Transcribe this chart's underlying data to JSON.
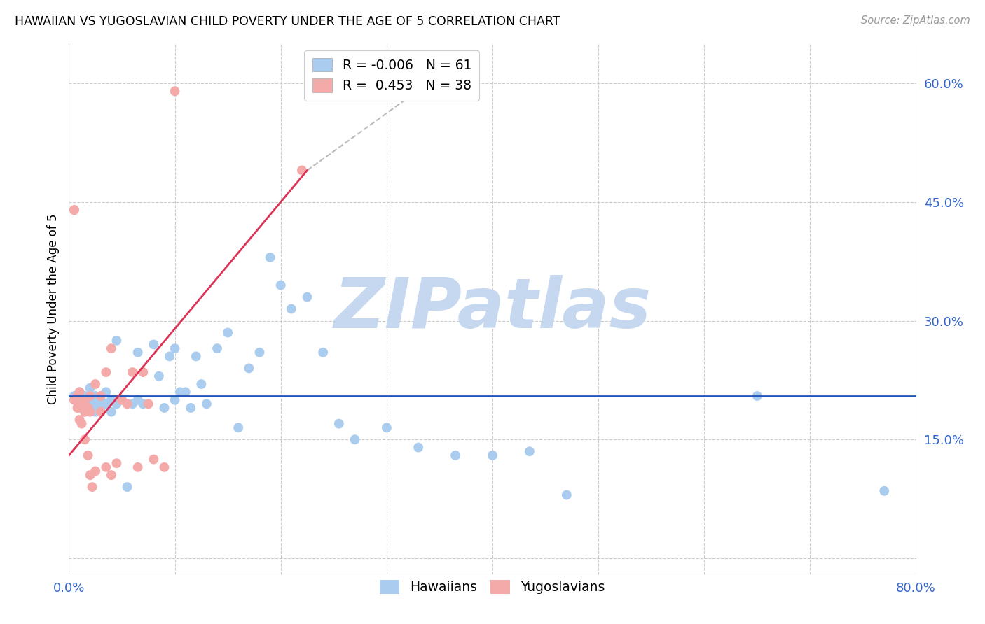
{
  "title": "HAWAIIAN VS YUGOSLAVIAN CHILD POVERTY UNDER THE AGE OF 5 CORRELATION CHART",
  "source": "Source: ZipAtlas.com",
  "ylabel": "Child Poverty Under the Age of 5",
  "xlim": [
    0.0,
    0.8
  ],
  "ylim": [
    -0.02,
    0.65
  ],
  "grid_color": "#cccccc",
  "background_color": "#ffffff",
  "hawaiian_color": "#aaccee",
  "yugoslavian_color": "#f5aaaa",
  "hawaiian_line_color": "#2255bb",
  "yugoslavian_line_color": "#dd3355",
  "legend_R_hawaiian": "-0.006",
  "legend_N_hawaiian": "61",
  "legend_R_yugoslavian": "0.453",
  "legend_N_yugoslavian": "38",
  "watermark": "ZIPatlas",
  "watermark_color": "#c5d8f0",
  "hawaiian_line_x": [
    0.0,
    0.8
  ],
  "hawaiian_line_y": [
    0.205,
    0.205
  ],
  "yugoslavian_line_x": [
    0.0,
    0.225
  ],
  "yugoslavian_line_y": [
    0.13,
    0.49
  ],
  "dashed_line_x": [
    0.225,
    0.36
  ],
  "dashed_line_y": [
    0.49,
    0.62
  ],
  "hawaiian_x": [
    0.005,
    0.01,
    0.01,
    0.015,
    0.015,
    0.015,
    0.02,
    0.02,
    0.02,
    0.025,
    0.025,
    0.025,
    0.025,
    0.03,
    0.03,
    0.03,
    0.03,
    0.035,
    0.035,
    0.04,
    0.04,
    0.045,
    0.045,
    0.05,
    0.055,
    0.06,
    0.065,
    0.065,
    0.07,
    0.08,
    0.085,
    0.09,
    0.095,
    0.1,
    0.1,
    0.105,
    0.11,
    0.115,
    0.12,
    0.125,
    0.13,
    0.14,
    0.15,
    0.16,
    0.17,
    0.18,
    0.19,
    0.2,
    0.21,
    0.225,
    0.24,
    0.255,
    0.27,
    0.3,
    0.33,
    0.365,
    0.4,
    0.435,
    0.47,
    0.65,
    0.77
  ],
  "hawaiian_y": [
    0.205,
    0.2,
    0.21,
    0.195,
    0.205,
    0.185,
    0.195,
    0.2,
    0.215,
    0.195,
    0.2,
    0.205,
    0.185,
    0.205,
    0.2,
    0.195,
    0.185,
    0.195,
    0.21,
    0.185,
    0.2,
    0.195,
    0.275,
    0.2,
    0.09,
    0.195,
    0.26,
    0.2,
    0.195,
    0.27,
    0.23,
    0.19,
    0.255,
    0.265,
    0.2,
    0.21,
    0.21,
    0.19,
    0.255,
    0.22,
    0.195,
    0.265,
    0.285,
    0.165,
    0.24,
    0.26,
    0.38,
    0.345,
    0.315,
    0.33,
    0.26,
    0.17,
    0.15,
    0.165,
    0.14,
    0.13,
    0.13,
    0.135,
    0.08,
    0.205,
    0.085
  ],
  "yugoslavian_x": [
    0.005,
    0.005,
    0.005,
    0.008,
    0.008,
    0.01,
    0.01,
    0.01,
    0.012,
    0.012,
    0.015,
    0.015,
    0.015,
    0.018,
    0.018,
    0.02,
    0.02,
    0.02,
    0.022,
    0.025,
    0.025,
    0.03,
    0.03,
    0.035,
    0.035,
    0.04,
    0.04,
    0.045,
    0.05,
    0.055,
    0.06,
    0.065,
    0.07,
    0.075,
    0.08,
    0.09,
    0.1,
    0.22
  ],
  "yugoslavian_y": [
    0.44,
    0.44,
    0.2,
    0.205,
    0.19,
    0.21,
    0.19,
    0.175,
    0.195,
    0.17,
    0.2,
    0.185,
    0.15,
    0.19,
    0.13,
    0.205,
    0.185,
    0.105,
    0.09,
    0.22,
    0.11,
    0.205,
    0.185,
    0.235,
    0.115,
    0.265,
    0.105,
    0.12,
    0.2,
    0.195,
    0.235,
    0.115,
    0.235,
    0.195,
    0.125,
    0.115,
    0.59,
    0.49
  ]
}
